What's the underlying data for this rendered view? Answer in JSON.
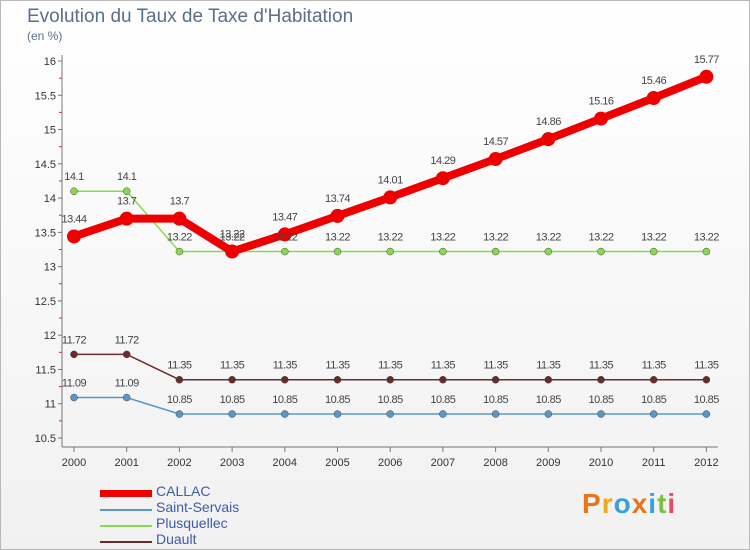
{
  "title": "Evolution du Taux de Taxe d'Habitation",
  "subtitle": "(en %)",
  "brand": "Proxiti",
  "chart_data": {
    "type": "line",
    "x": [
      "2000",
      "2001",
      "2002",
      "2003",
      "2004",
      "2005",
      "2006",
      "2007",
      "2008",
      "2009",
      "2010",
      "2011",
      "2012"
    ],
    "ylim": [
      10.5,
      16
    ],
    "yticks": [
      "10.5",
      "11",
      "11.5",
      "12",
      "12.5",
      "13",
      "13.5",
      "14",
      "14.5",
      "15",
      "15.5",
      "16"
    ],
    "grid": false,
    "legend_position": "bottom-left",
    "series": [
      {
        "name": "CALLAC",
        "color": "#ee0000",
        "values": [
          13.44,
          13.7,
          13.7,
          13.22,
          13.47,
          13.74,
          14.01,
          14.29,
          14.57,
          14.86,
          15.16,
          15.46,
          15.77
        ],
        "labels": [
          "13.44",
          "13.7",
          "13.7",
          "13.22",
          "13.47",
          "13.74",
          "14.01",
          "14.29",
          "14.57",
          "14.86",
          "15.16",
          "15.46",
          "15.77"
        ]
      },
      {
        "name": "Saint-Servais",
        "color": "#5b96c8",
        "values": [
          11.09,
          11.09,
          10.85,
          10.85,
          10.85,
          10.85,
          10.85,
          10.85,
          10.85,
          10.85,
          10.85,
          10.85,
          10.85
        ],
        "labels": [
          "11.09",
          "11.09",
          "10.85",
          "10.85",
          "10.85",
          "10.85",
          "10.85",
          "10.85",
          "10.85",
          "10.85",
          "10.85",
          "10.85",
          "10.85"
        ]
      },
      {
        "name": "Plusquellec",
        "color": "#88d94d",
        "values": [
          14.1,
          14.1,
          13.22,
          13.22,
          13.22,
          13.22,
          13.22,
          13.22,
          13.22,
          13.22,
          13.22,
          13.22,
          13.22
        ],
        "labels": [
          "14.1",
          "14.1",
          "13.22",
          "13.22",
          "13.22",
          "13.22",
          "13.22",
          "13.22",
          "13.22",
          "13.22",
          "13.22",
          "13.22",
          "13.22"
        ]
      },
      {
        "name": "Duault",
        "color": "#6b2b2b",
        "values": [
          11.72,
          11.72,
          11.35,
          11.35,
          11.35,
          11.35,
          11.35,
          11.35,
          11.35,
          11.35,
          11.35,
          11.35,
          11.35
        ],
        "labels": [
          "11.72",
          "11.72",
          "11.35",
          "11.35",
          "11.35",
          "11.35",
          "11.35",
          "11.35",
          "11.35",
          "11.35",
          "11.35",
          "11.35",
          "11.35"
        ]
      }
    ]
  }
}
